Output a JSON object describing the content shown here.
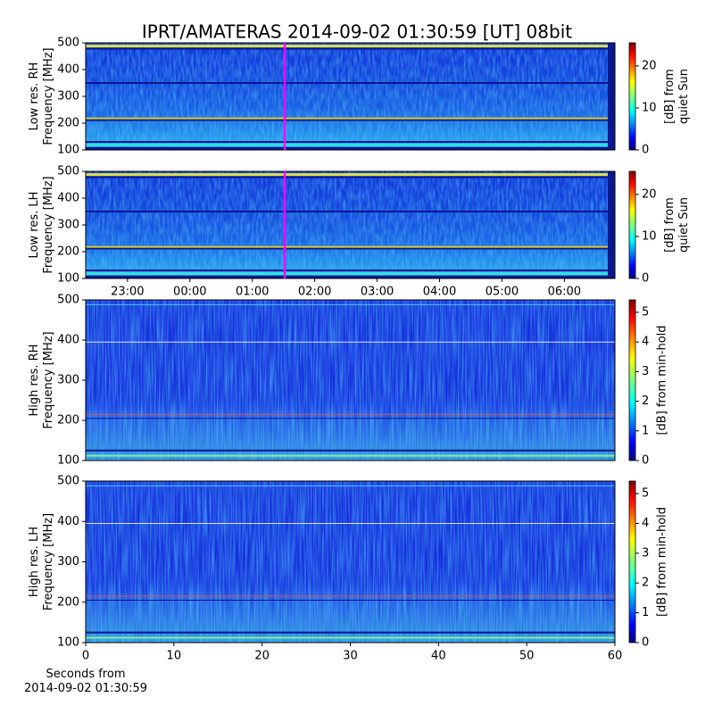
{
  "title": "IPRT/AMATERAS 2014-09-02 01:30:59 [UT]   08bit",
  "chart_data": [
    {
      "type": "heatmap",
      "ylabel": "Low res. RH\nFrequency [MHz]",
      "ylim": [
        100,
        500
      ],
      "yticks": [
        100,
        200,
        300,
        400,
        500
      ],
      "colorbar": {
        "label": "[dB] from\nquiet Sun",
        "lim": [
          0,
          25.5
        ],
        "ticks": [
          0,
          10,
          20
        ]
      }
    },
    {
      "type": "heatmap",
      "ylabel": "Low res. LH\nFrequency [MHz]",
      "ylim": [
        100,
        500
      ],
      "yticks": [
        100,
        200,
        300,
        400,
        500
      ],
      "xlim": [
        22.33,
        30.81
      ],
      "xticks": [
        {
          "value": 23,
          "label": "23:00"
        },
        {
          "value": 24,
          "label": "00:00"
        },
        {
          "value": 25,
          "label": "01:00"
        },
        {
          "value": 26,
          "label": "02:00"
        },
        {
          "value": 27,
          "label": "03:00"
        },
        {
          "value": 28,
          "label": "04:00"
        },
        {
          "value": 29,
          "label": "05:00"
        },
        {
          "value": 30,
          "label": "06:00"
        }
      ],
      "colorbar": {
        "label": "[dB] from\nquiet Sun",
        "lim": [
          0,
          25.5
        ],
        "ticks": [
          0,
          10,
          20
        ]
      }
    },
    {
      "type": "heatmap",
      "ylabel": "High res. RH\nFrequency [MHz]",
      "ylim": [
        100,
        500
      ],
      "yticks": [
        100,
        200,
        300,
        400,
        500
      ],
      "colorbar": {
        "label": "[dB] from min-hold",
        "lim": [
          0,
          5.42
        ],
        "ticks": [
          0,
          1,
          2,
          3,
          4,
          5
        ]
      }
    },
    {
      "type": "heatmap",
      "ylabel": "High res. LH\nFrequency [MHz]",
      "ylim": [
        100,
        500
      ],
      "yticks": [
        100,
        200,
        300,
        400,
        500
      ],
      "xlabel": "Seconds from\n2014-09-02 01:30:59",
      "xlim": [
        0,
        60
      ],
      "xticks": [
        0,
        10,
        20,
        30,
        40,
        50,
        60
      ],
      "colorbar": {
        "label": "[dB] from min-hold",
        "lim": [
          0,
          5.42
        ],
        "ticks": [
          0,
          1,
          2,
          3,
          4,
          5
        ]
      }
    }
  ]
}
